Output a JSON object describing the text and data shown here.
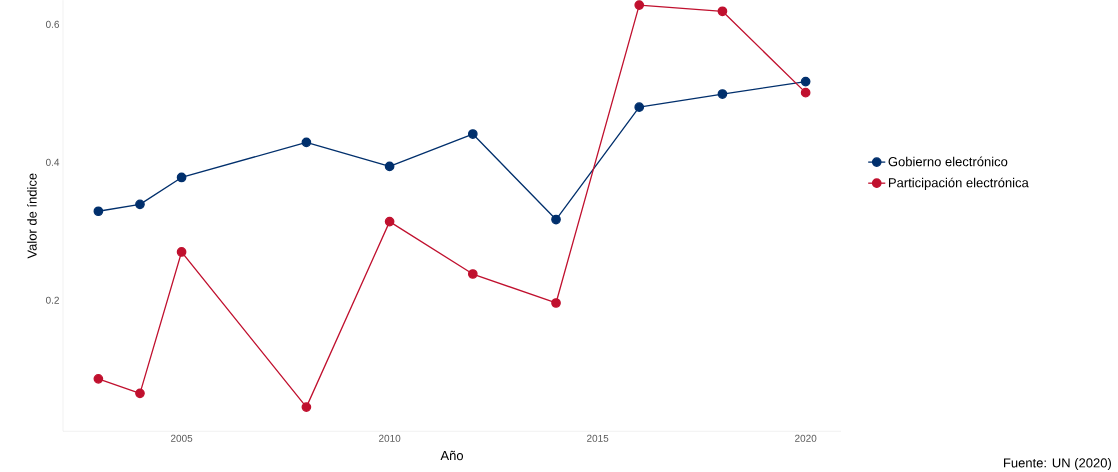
{
  "chart_data": {
    "type": "line",
    "xlabel": "Año",
    "ylabel": "Valor de índice",
    "x": [
      2003,
      2004,
      2005,
      2008,
      2010,
      2012,
      2014,
      2016,
      2018,
      2020
    ],
    "series": [
      {
        "name": "Gobierno electrónico",
        "color": "#002f6c",
        "values": [
          0.329,
          0.339,
          0.378,
          0.429,
          0.394,
          0.441,
          0.317,
          0.48,
          0.499,
          0.517
        ]
      },
      {
        "name": "Participación electrónica",
        "color": "#c0102e",
        "values": [
          0.086,
          0.065,
          0.27,
          0.045,
          0.314,
          0.238,
          0.196,
          0.628,
          0.619,
          0.501
        ]
      }
    ],
    "xticks": [
      2005,
      2010,
      2015,
      2020
    ],
    "yticks": [
      0.2,
      0.4,
      0.6
    ],
    "xlim": [
      2002.15,
      2020.85
    ],
    "ylim": [
      0.01,
      0.635
    ],
    "grid": false,
    "legend": "right",
    "marker": "circle",
    "line_style": "solid",
    "annotations": [
      "Fuente: UN (2020)"
    ]
  }
}
